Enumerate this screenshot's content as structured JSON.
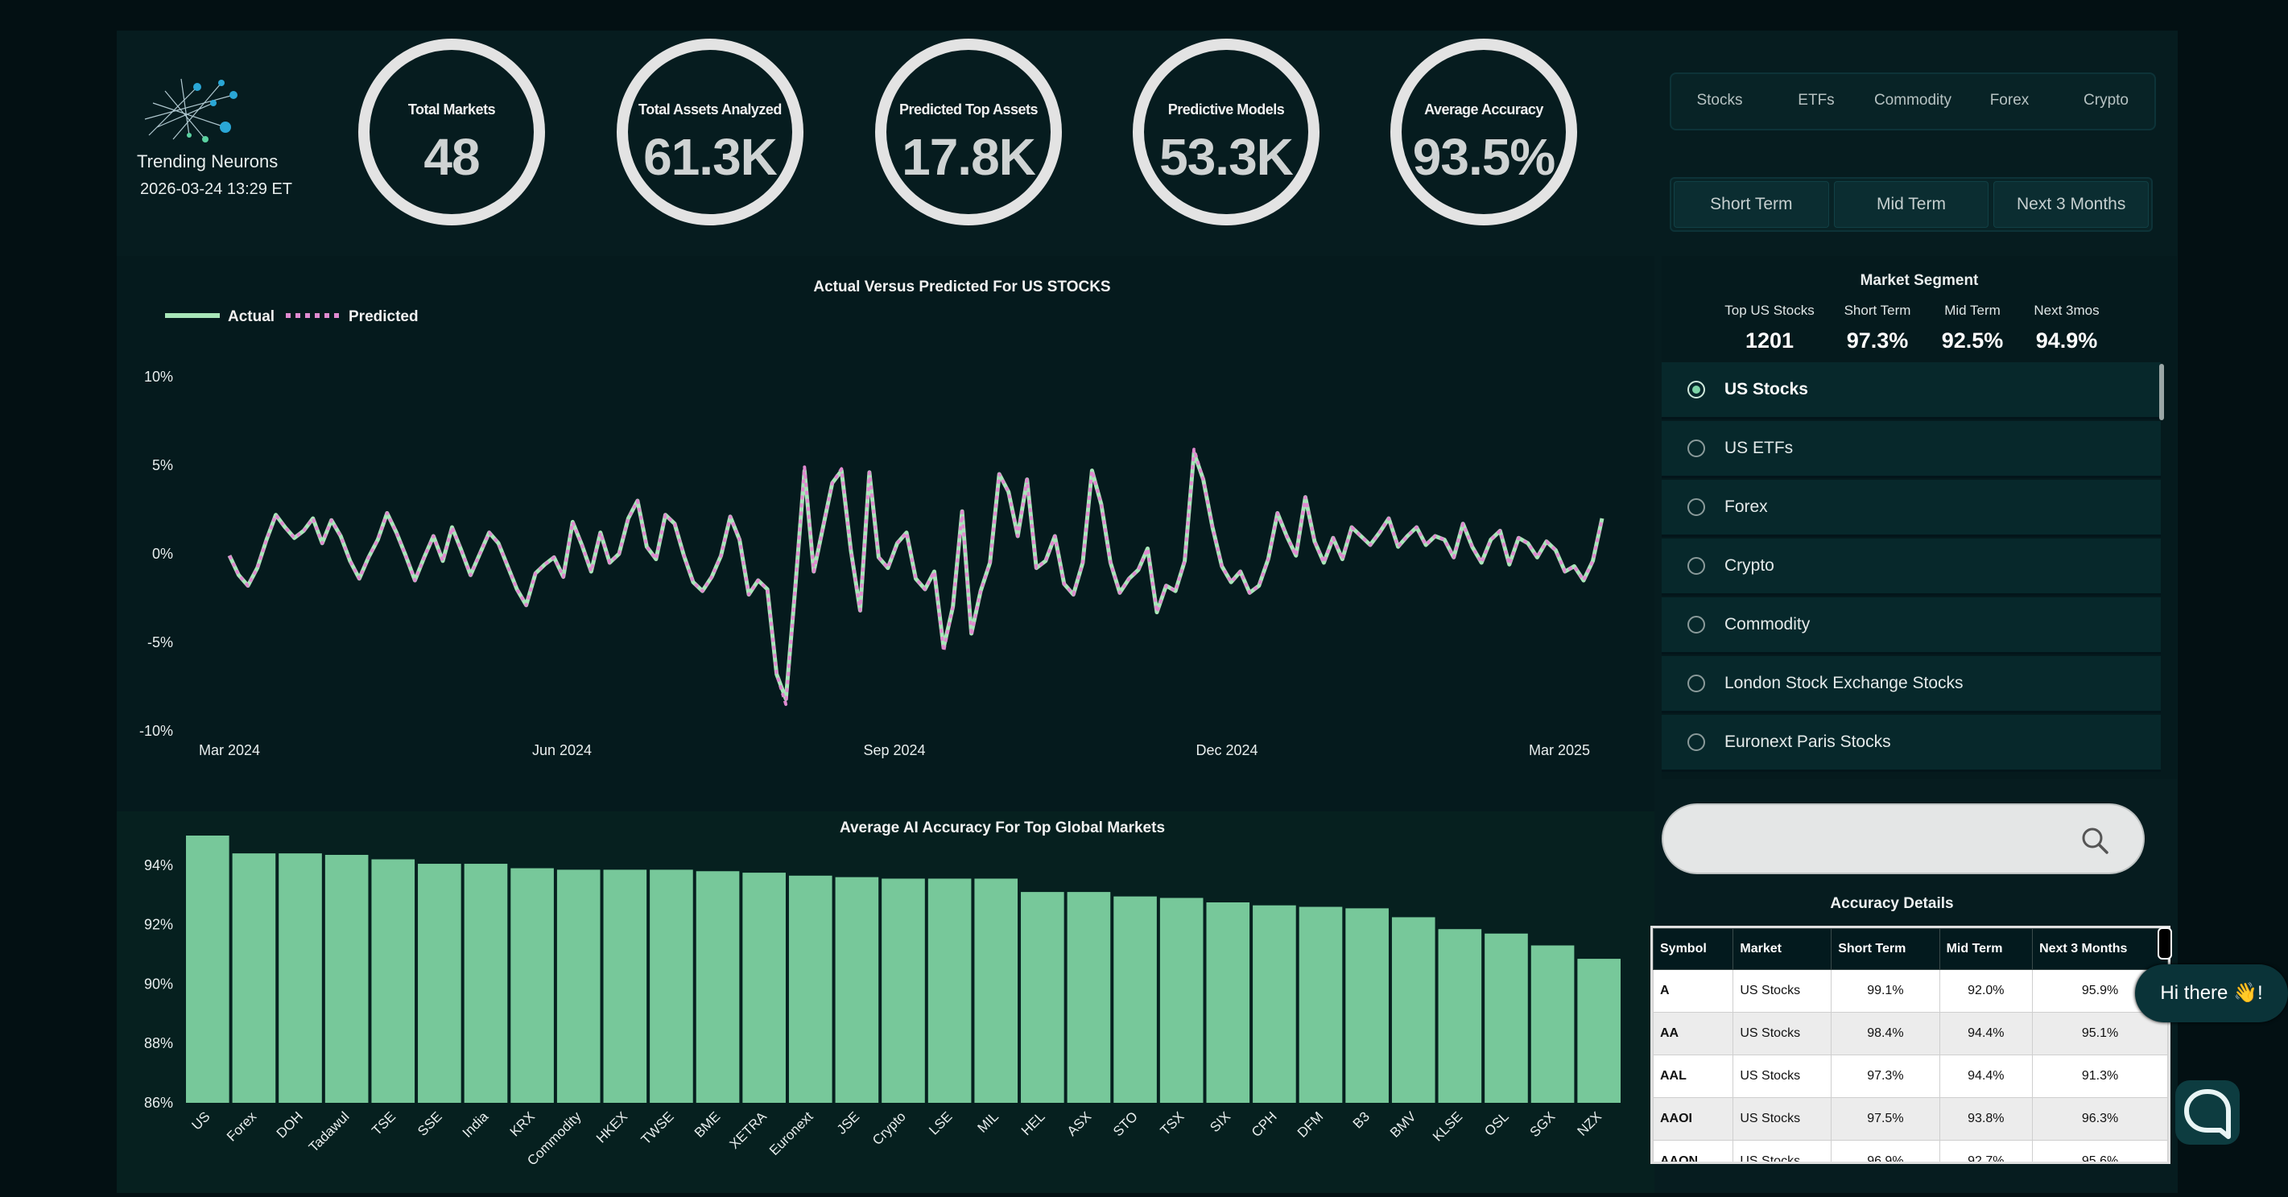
{
  "brand": {
    "name": "Trending Neurons",
    "timestamp": "2026-03-24 13:29 ET"
  },
  "kpis": [
    {
      "label": "Total Markets",
      "value": "48"
    },
    {
      "label": "Total Assets Analyzed",
      "value": "61.3K"
    },
    {
      "label": "Predicted Top Assets",
      "value": "17.8K"
    },
    {
      "label": "Predictive Models",
      "value": "53.3K"
    },
    {
      "label": "Average Accuracy",
      "value": "93.5%"
    }
  ],
  "asset_tabs": [
    "Stocks",
    "ETFs",
    "Commodity",
    "Forex",
    "Crypto"
  ],
  "term_tabs": [
    "Short Term",
    "Mid Term",
    "Next 3 Months"
  ],
  "market_segment": {
    "title": "Market Segment",
    "cols": [
      {
        "h": "Top US Stocks",
        "v": "1201"
      },
      {
        "h": "Short Term",
        "v": "97.3%"
      },
      {
        "h": "Mid Term",
        "v": "92.5%"
      },
      {
        "h": "Next 3mos",
        "v": "94.9%"
      }
    ],
    "items": [
      "US Stocks",
      "US ETFs",
      "Forex",
      "Crypto",
      "Commodity",
      "London Stock Exchange Stocks",
      "Euronext Paris Stocks"
    ],
    "selected": "US Stocks"
  },
  "accuracy": {
    "title": "Accuracy Details",
    "headers": [
      "Symbol",
      "Market",
      "Short Term",
      "Mid Term",
      "Next 3 Months"
    ],
    "rows": [
      [
        "A",
        "US Stocks",
        "99.1%",
        "92.0%",
        "95.9%"
      ],
      [
        "AA",
        "US Stocks",
        "98.4%",
        "94.4%",
        "95.1%"
      ],
      [
        "AAL",
        "US Stocks",
        "97.3%",
        "94.4%",
        "91.3%"
      ],
      [
        "AAOI",
        "US Stocks",
        "97.5%",
        "93.8%",
        "96.3%"
      ],
      [
        "AAON",
        "US Stocks",
        "96.9%",
        "92.7%",
        "95.6%"
      ]
    ]
  },
  "chat": {
    "greeting": "Hi there 👋!"
  },
  "chart_data": [
    {
      "type": "line",
      "title": "Actual Versus Predicted For US STOCKS",
      "legend": [
        "Actual",
        "Predicted"
      ],
      "legend_placement": "top-left",
      "ylim": [
        -10,
        10
      ],
      "yticks": [
        "10%",
        "5%",
        "0%",
        "-5%",
        "-10%"
      ],
      "xticks": [
        "Mar 2024",
        "Jun 2024",
        "Sep 2024",
        "Dec 2024",
        "Mar 2025"
      ],
      "series": [
        {
          "name": "Actual",
          "color": "#a8e6b8",
          "values": [
            -0.1,
            -1.2,
            -1.8,
            -0.8,
            0.8,
            2.2,
            1.5,
            0.9,
            1.3,
            2.0,
            0.6,
            1.9,
            1.0,
            -0.4,
            -1.4,
            -0.2,
            0.8,
            2.3,
            1.2,
            -0.1,
            -1.5,
            -0.2,
            1.0,
            -0.4,
            1.5,
            0.2,
            -1.2,
            0.0,
            1.2,
            0.6,
            -0.7,
            -2.0,
            -2.9,
            -1.1,
            -0.6,
            -0.2,
            -1.3,
            1.8,
            0.5,
            -1.0,
            1.2,
            -0.5,
            0.0,
            2.0,
            3.0,
            0.4,
            -0.3,
            2.2,
            1.7,
            -0.1,
            -1.6,
            -2.1,
            -1.3,
            -0.1,
            2.1,
            0.8,
            -2.3,
            -1.5,
            -2.0,
            -6.8,
            -8.2,
            -2.0,
            4.7,
            -1.0,
            1.5,
            4.0,
            4.7,
            0.2,
            -3.2,
            4.6,
            -0.2,
            -0.8,
            0.6,
            1.2,
            -1.4,
            -2.0,
            -1.0,
            -5.3,
            -3.0,
            2.4,
            -4.5,
            -2.1,
            -0.5,
            4.5,
            3.5,
            1.0,
            4.2,
            -0.8,
            -0.4,
            1.0,
            -1.7,
            -2.3,
            -0.5,
            4.7,
            2.8,
            -0.5,
            -2.2,
            -1.4,
            -0.9,
            0.3,
            -3.3,
            -1.8,
            -2.1,
            -0.4,
            5.7,
            4.2,
            1.5,
            -0.7,
            -1.6,
            -1.0,
            -2.2,
            -1.8,
            -0.3,
            2.3,
            1.0,
            -0.1,
            3.2,
            0.7,
            -0.5,
            0.9,
            -0.3,
            1.5,
            1.0,
            0.5,
            1.2,
            2.0,
            0.4,
            1.0,
            1.5,
            0.5,
            1.0,
            0.8,
            -0.2,
            1.7,
            0.4,
            -0.5,
            0.8,
            1.3,
            -0.6,
            0.9,
            0.6,
            -0.2,
            0.7,
            0.2,
            -1.0,
            -0.7,
            -1.5,
            -0.4,
            2.0
          ]
        },
        {
          "name": "Predicted",
          "color": "#e08ad0",
          "values": [
            -0.1,
            -1.2,
            -1.8,
            -0.8,
            0.8,
            2.2,
            1.5,
            0.9,
            1.3,
            2.0,
            0.6,
            1.9,
            1.0,
            -0.4,
            -1.4,
            -0.2,
            0.8,
            2.3,
            1.2,
            -0.1,
            -1.5,
            -0.2,
            1.0,
            -0.4,
            1.5,
            0.2,
            -1.2,
            0.0,
            1.2,
            0.6,
            -0.7,
            -2.0,
            -2.9,
            -1.1,
            -0.6,
            -0.2,
            -1.3,
            1.8,
            0.5,
            -1.0,
            1.2,
            -0.5,
            0.0,
            2.0,
            3.0,
            0.4,
            -0.3,
            2.2,
            1.7,
            -0.1,
            -1.6,
            -2.1,
            -1.3,
            -0.1,
            2.1,
            0.8,
            -2.3,
            -1.5,
            -2.0,
            -6.8,
            -8.5,
            -2.0,
            4.9,
            -1.0,
            1.5,
            4.0,
            4.8,
            0.2,
            -3.2,
            4.6,
            -0.2,
            -0.8,
            0.6,
            1.2,
            -1.4,
            -2.0,
            -1.0,
            -5.5,
            -3.0,
            2.4,
            -4.6,
            -2.1,
            -0.5,
            4.5,
            3.5,
            1.0,
            4.2,
            -0.8,
            -0.4,
            1.0,
            -1.7,
            -2.3,
            -0.5,
            4.7,
            2.8,
            -0.5,
            -2.2,
            -1.4,
            -0.9,
            0.3,
            -3.3,
            -1.8,
            -2.1,
            -0.4,
            5.9,
            4.2,
            1.5,
            -0.7,
            -1.6,
            -1.0,
            -2.2,
            -1.8,
            -0.3,
            2.3,
            1.0,
            -0.1,
            3.2,
            0.7,
            -0.5,
            0.9,
            -0.3,
            1.5,
            1.0,
            0.5,
            1.2,
            2.0,
            0.4,
            1.0,
            1.5,
            0.5,
            1.0,
            0.8,
            -0.2,
            1.7,
            0.4,
            -0.5,
            0.8,
            1.3,
            -0.6,
            0.9,
            0.6,
            -0.2,
            0.7,
            0.2,
            -1.0,
            -0.7,
            -1.5,
            -0.4,
            2.0
          ]
        }
      ]
    },
    {
      "type": "bar",
      "title": "Average AI Accuracy For Top Global Markets",
      "ylim": [
        86,
        95
      ],
      "yticks": [
        "94%",
        "92%",
        "90%",
        "88%",
        "86%"
      ],
      "color": "#77c89a",
      "categories": [
        "US",
        "Forex",
        "DOH",
        "Tadawul",
        "TSE",
        "SSE",
        "India",
        "KRX",
        "Commodity",
        "HKEX",
        "TWSE",
        "BME",
        "XETRA",
        "Euronext",
        "JSE",
        "Crypto",
        "LSE",
        "MIL",
        "HEL",
        "ASX",
        "STO",
        "TSX",
        "SIX",
        "CPH",
        "DFM",
        "B3",
        "BMV",
        "KLSE",
        "OSL",
        "SGX",
        "NZX"
      ],
      "values": [
        95.0,
        94.4,
        94.4,
        94.35,
        94.2,
        94.05,
        94.05,
        93.9,
        93.85,
        93.85,
        93.85,
        93.8,
        93.75,
        93.65,
        93.6,
        93.55,
        93.55,
        93.55,
        93.1,
        93.1,
        92.95,
        92.9,
        92.75,
        92.65,
        92.6,
        92.55,
        92.25,
        91.85,
        91.7,
        91.3,
        90.85
      ]
    }
  ]
}
